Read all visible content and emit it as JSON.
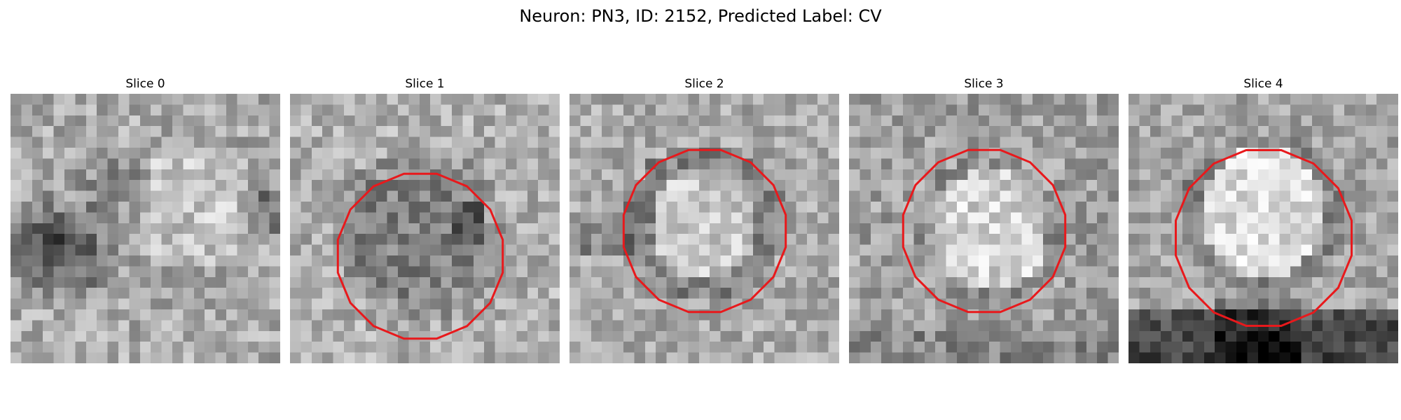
{
  "figure": {
    "title": "Neuron: PN3, ID: 2152, Predicted Label: CV"
  },
  "panels": [
    {
      "title": "Slice 0",
      "contour_visible": false,
      "texture": "dark-left-blob"
    },
    {
      "title": "Slice 1",
      "contour_visible": true,
      "texture": "dark-ring-interior"
    },
    {
      "title": "Slice 2",
      "contour_visible": true,
      "texture": "bright-interior-dark-rim"
    },
    {
      "title": "Slice 3",
      "contour_visible": true,
      "texture": "bright-interior"
    },
    {
      "title": "Slice 4",
      "contour_visible": true,
      "texture": "bright-interior-dark-bottom"
    }
  ],
  "colors": {
    "contour": "#e8191c",
    "colormap": "grayscale"
  }
}
